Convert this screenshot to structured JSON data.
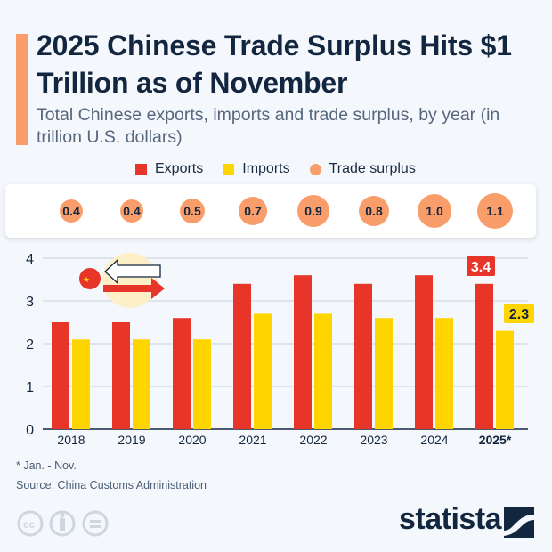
{
  "header": {
    "title": "2025 Chinese Trade Surplus Hits $1 Trillion as of November",
    "subtitle": "Total Chinese exports, imports and trade surplus, by year (in trillion U.S. dollars)"
  },
  "colors": {
    "accent": "#f99e6b",
    "exports": "#e8352a",
    "imports": "#ffd500",
    "surplus": "#f99e6b",
    "text": "#13263f"
  },
  "chart_data": {
    "type": "bar",
    "categories": [
      "2018",
      "2019",
      "2020",
      "2021",
      "2022",
      "2023",
      "2024",
      "2025*"
    ],
    "series": [
      {
        "name": "Exports",
        "values": [
          2.5,
          2.5,
          2.6,
          3.4,
          3.6,
          3.4,
          3.6,
          3.4
        ]
      },
      {
        "name": "Imports",
        "values": [
          2.1,
          2.1,
          2.1,
          2.7,
          2.7,
          2.6,
          2.6,
          2.3
        ]
      },
      {
        "name": "Trade surplus",
        "values": [
          0.4,
          0.4,
          0.5,
          0.7,
          0.9,
          0.8,
          1.0,
          1.1
        ],
        "display": "bubbles"
      }
    ],
    "surplus_labels": [
      "0.4",
      "0.4",
      "0.5",
      "0.7",
      "0.9",
      "0.8",
      "1.0",
      "1.1"
    ],
    "data_labels": {
      "exports_2025": "3.4",
      "imports_2025": "2.3"
    },
    "ylim": [
      0,
      4
    ],
    "yticks": [
      "0",
      "1",
      "2",
      "3",
      "4"
    ],
    "grid": true,
    "legend_position": "top-center"
  },
  "legend": {
    "exports": "Exports",
    "imports": "Imports",
    "surplus": "Trade surplus"
  },
  "footer": {
    "footnote": "* Jan. - Nov.",
    "source": "Source: China Customs Administration",
    "brand": "statista",
    "license_icons": [
      "cc-icon",
      "by-icon",
      "nd-icon"
    ]
  }
}
